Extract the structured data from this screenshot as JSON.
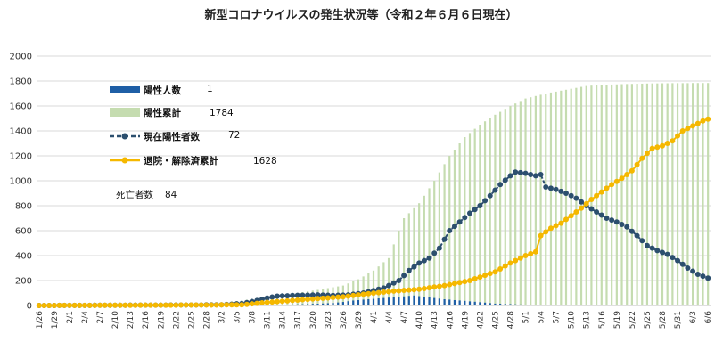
{
  "chart_data": {
    "type": "bar",
    "title": "新型コロナウイルスの発生状況等（令和２年６月６日現在）",
    "xlabel": "",
    "ylabel": "",
    "ylim": [
      0,
      2000
    ],
    "yticks": [
      0,
      200,
      400,
      600,
      800,
      1000,
      1200,
      1400,
      1600,
      1800,
      2000
    ],
    "grid": true,
    "legend_position": "top-left",
    "x_start": "2020-01-26",
    "x_tick_labels": [
      "1/26",
      "1/29",
      "2/1",
      "2/4",
      "2/7",
      "2/10",
      "2/13",
      "2/16",
      "2/19",
      "2/22",
      "2/25",
      "2/28",
      "3/2",
      "3/5",
      "3/8",
      "3/11",
      "3/14",
      "3/17",
      "3/20",
      "3/23",
      "3/26",
      "3/29",
      "4/1",
      "4/4",
      "4/7",
      "4/10",
      "4/13",
      "4/16",
      "4/19",
      "4/22",
      "4/25",
      "4/28",
      "5/1",
      "5/4",
      "5/7",
      "5/10",
      "5/13",
      "5/16",
      "5/19",
      "5/22",
      "5/25",
      "5/28",
      "5/31",
      "6/3",
      "6/6"
    ],
    "anchors": {
      "daily": [
        [
          0,
          0
        ],
        [
          35,
          1
        ],
        [
          40,
          2
        ],
        [
          45,
          4
        ],
        [
          48,
          6
        ],
        [
          52,
          10
        ],
        [
          55,
          14
        ],
        [
          58,
          20
        ],
        [
          60,
          28
        ],
        [
          62,
          40
        ],
        [
          65,
          50
        ],
        [
          68,
          60
        ],
        [
          71,
          70
        ],
        [
          74,
          80
        ],
        [
          76,
          70
        ],
        [
          78,
          60
        ],
        [
          80,
          50
        ],
        [
          83,
          40
        ],
        [
          86,
          30
        ],
        [
          90,
          15
        ],
        [
          95,
          8
        ],
        [
          100,
          5
        ],
        [
          110,
          3
        ],
        [
          120,
          2
        ],
        [
          132,
          1
        ]
      ],
      "cumulative": [
        [
          0,
          0
        ],
        [
          20,
          2
        ],
        [
          30,
          5
        ],
        [
          35,
          20
        ],
        [
          40,
          40
        ],
        [
          45,
          70
        ],
        [
          50,
          95
        ],
        [
          55,
          125
        ],
        [
          60,
          160
        ],
        [
          63,
          210
        ],
        [
          66,
          280
        ],
        [
          69,
          380
        ],
        [
          71,
          600
        ],
        [
          72,
          700
        ],
        [
          75,
          820
        ],
        [
          78,
          1000
        ],
        [
          81,
          1200
        ],
        [
          84,
          1350
        ],
        [
          87,
          1450
        ],
        [
          90,
          1530
        ],
        [
          93,
          1600
        ],
        [
          96,
          1660
        ],
        [
          100,
          1700
        ],
        [
          104,
          1730
        ],
        [
          108,
          1760
        ],
        [
          112,
          1770
        ],
        [
          116,
          1776
        ],
        [
          120,
          1780
        ],
        [
          126,
          1783
        ],
        [
          132,
          1784
        ]
      ],
      "active": [
        [
          0,
          0
        ],
        [
          36,
          5
        ],
        [
          40,
          15
        ],
        [
          43,
          40
        ],
        [
          45,
          60
        ],
        [
          47,
          75
        ],
        [
          50,
          80
        ],
        [
          55,
          85
        ],
        [
          58,
          80
        ],
        [
          61,
          85
        ],
        [
          64,
          100
        ],
        [
          66,
          120
        ],
        [
          68,
          140
        ],
        [
          71,
          200
        ],
        [
          73,
          280
        ],
        [
          75,
          340
        ],
        [
          77,
          380
        ],
        [
          79,
          460
        ],
        [
          81,
          600
        ],
        [
          83,
          670
        ],
        [
          85,
          740
        ],
        [
          87,
          800
        ],
        [
          89,
          880
        ],
        [
          91,
          970
        ],
        [
          93,
          1040
        ],
        [
          94,
          1070
        ],
        [
          96,
          1060
        ],
        [
          98,
          1040
        ],
        [
          99,
          1050
        ],
        [
          100,
          950
        ],
        [
          102,
          930
        ],
        [
          104,
          900
        ],
        [
          106,
          860
        ],
        [
          108,
          800
        ],
        [
          110,
          750
        ],
        [
          112,
          700
        ],
        [
          114,
          670
        ],
        [
          116,
          630
        ],
        [
          118,
          560
        ],
        [
          120,
          480
        ],
        [
          122,
          440
        ],
        [
          124,
          410
        ],
        [
          126,
          360
        ],
        [
          128,
          300
        ],
        [
          130,
          250
        ],
        [
          132,
          220
        ],
        [
          134,
          190
        ],
        [
          136,
          150
        ],
        [
          138,
          130
        ],
        [
          140,
          100
        ],
        [
          142,
          85
        ],
        [
          144,
          80
        ],
        [
          147,
          72
        ]
      ],
      "recovered": [
        [
          0,
          0
        ],
        [
          40,
          5
        ],
        [
          45,
          25
        ],
        [
          50,
          40
        ],
        [
          55,
          55
        ],
        [
          60,
          70
        ],
        [
          65,
          95
        ],
        [
          70,
          115
        ],
        [
          75,
          130
        ],
        [
          80,
          160
        ],
        [
          85,
          200
        ],
        [
          90,
          270
        ],
        [
          93,
          340
        ],
        [
          96,
          400
        ],
        [
          98,
          430
        ],
        [
          99,
          560
        ],
        [
          101,
          620
        ],
        [
          103,
          660
        ],
        [
          105,
          720
        ],
        [
          107,
          780
        ],
        [
          109,
          850
        ],
        [
          111,
          910
        ],
        [
          113,
          970
        ],
        [
          115,
          1020
        ],
        [
          117,
          1080
        ],
        [
          119,
          1180
        ],
        [
          121,
          1260
        ],
        [
          123,
          1280
        ],
        [
          125,
          1320
        ],
        [
          127,
          1400
        ],
        [
          129,
          1440
        ],
        [
          131,
          1480
        ],
        [
          133,
          1510
        ],
        [
          135,
          1540
        ],
        [
          137,
          1560
        ],
        [
          139,
          1580
        ],
        [
          141,
          1600
        ],
        [
          144,
          1615
        ],
        [
          147,
          1628
        ]
      ]
    },
    "series": [
      {
        "name": "陽性人数",
        "type": "bar",
        "color": "#1f5fa6",
        "current_value": "1"
      },
      {
        "name": "陽性累計",
        "type": "bar",
        "color": "#c5dcb0",
        "current_value": "1784"
      },
      {
        "name": "現在陽性者数",
        "type": "line",
        "color": "#2c4f6e",
        "current_value": "72"
      },
      {
        "name": "退院・解除済累計",
        "type": "line",
        "color": "#f5b800",
        "current_value": "1628"
      }
    ],
    "annotation": {
      "label": "死亡者数",
      "value": "84"
    }
  }
}
